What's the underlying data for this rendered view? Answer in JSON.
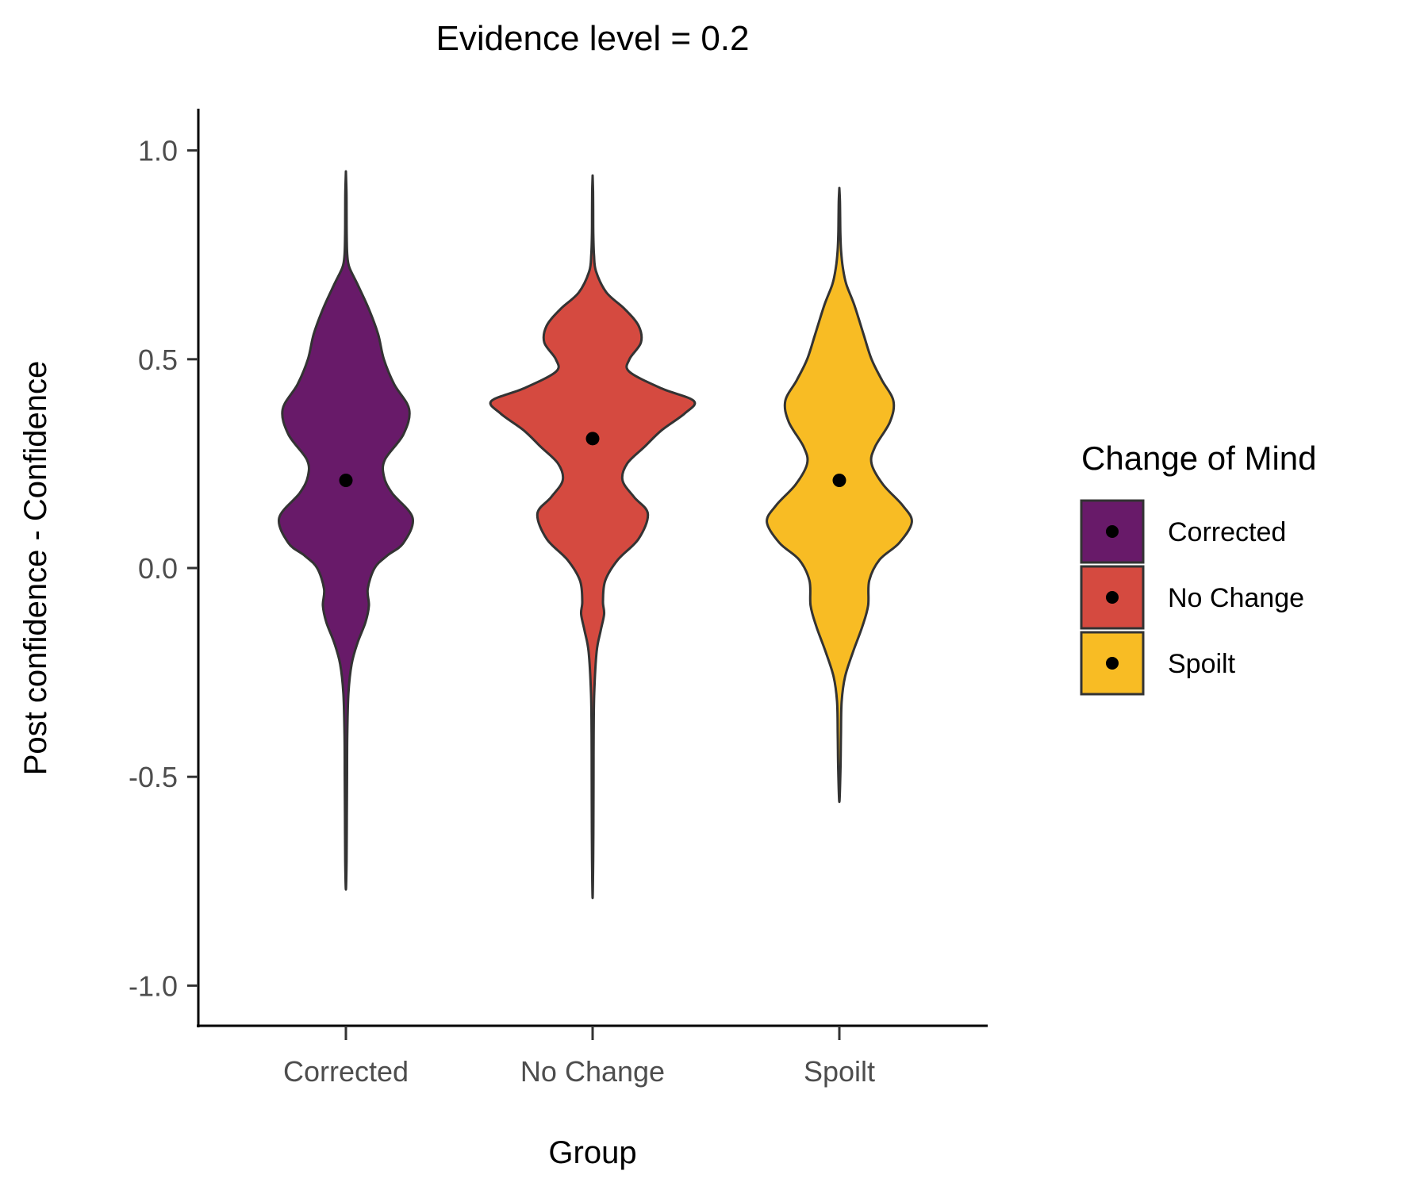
{
  "chart_data": {
    "type": "violin",
    "title": "Evidence level = 0.2",
    "xlabel": "Group",
    "ylabel": "Post confidence - Confidence",
    "categories": [
      "Corrected",
      "No Change",
      "Spoilt"
    ],
    "ylim": [
      -1.1,
      1.1
    ],
    "yticks": [
      1.0,
      0.5,
      0.0,
      -0.5,
      -1.0
    ],
    "ytick_labels": [
      "1.0",
      "0.5",
      "0.0",
      "-0.5",
      "-1.0"
    ],
    "grid": false,
    "legend": {
      "title": "Change of Mind",
      "position": "right",
      "entries": [
        "Corrected",
        "No Change",
        "Spoilt"
      ]
    },
    "colors": [
      "#681a69",
      "#d54a40",
      "#f8bc24"
    ],
    "outline_color": "#333333",
    "point_color": "#000000",
    "series": [
      {
        "name": "Corrected",
        "mean": 0.21,
        "range": [
          -0.77,
          0.95
        ],
        "density": [
          [
            0.95,
            0.0
          ],
          [
            0.9,
            0.005
          ],
          [
            0.85,
            0.006
          ],
          [
            0.8,
            0.007
          ],
          [
            0.75,
            0.012
          ],
          [
            0.72,
            0.03
          ],
          [
            0.68,
            0.1
          ],
          [
            0.62,
            0.2
          ],
          [
            0.56,
            0.28
          ],
          [
            0.5,
            0.33
          ],
          [
            0.44,
            0.42
          ],
          [
            0.38,
            0.55
          ],
          [
            0.32,
            0.5
          ],
          [
            0.26,
            0.34
          ],
          [
            0.22,
            0.33
          ],
          [
            0.18,
            0.4
          ],
          [
            0.12,
            0.58
          ],
          [
            0.06,
            0.5
          ],
          [
            0.03,
            0.36
          ],
          [
            0.0,
            0.25
          ],
          [
            -0.05,
            0.19
          ],
          [
            -0.09,
            0.2
          ],
          [
            -0.13,
            0.17
          ],
          [
            -0.18,
            0.1
          ],
          [
            -0.23,
            0.05
          ],
          [
            -0.3,
            0.022
          ],
          [
            -0.4,
            0.012
          ],
          [
            -0.5,
            0.01
          ],
          [
            -0.6,
            0.008
          ],
          [
            -0.7,
            0.006
          ],
          [
            -0.77,
            0.0
          ]
        ]
      },
      {
        "name": "No Change",
        "mean": 0.31,
        "range": [
          -0.79,
          0.94
        ],
        "density": [
          [
            0.94,
            0.0
          ],
          [
            0.9,
            0.004
          ],
          [
            0.85,
            0.005
          ],
          [
            0.8,
            0.006
          ],
          [
            0.75,
            0.012
          ],
          [
            0.71,
            0.03
          ],
          [
            0.66,
            0.12
          ],
          [
            0.62,
            0.28
          ],
          [
            0.58,
            0.4
          ],
          [
            0.54,
            0.42
          ],
          [
            0.5,
            0.32
          ],
          [
            0.47,
            0.32
          ],
          [
            0.43,
            0.6
          ],
          [
            0.4,
            0.88
          ],
          [
            0.37,
            0.8
          ],
          [
            0.33,
            0.6
          ],
          [
            0.29,
            0.45
          ],
          [
            0.25,
            0.3
          ],
          [
            0.21,
            0.26
          ],
          [
            0.17,
            0.36
          ],
          [
            0.13,
            0.48
          ],
          [
            0.07,
            0.4
          ],
          [
            0.02,
            0.22
          ],
          [
            -0.03,
            0.11
          ],
          [
            -0.08,
            0.09
          ],
          [
            -0.11,
            0.1
          ],
          [
            -0.15,
            0.07
          ],
          [
            -0.2,
            0.035
          ],
          [
            -0.3,
            0.014
          ],
          [
            -0.4,
            0.009
          ],
          [
            -0.5,
            0.008
          ],
          [
            -0.6,
            0.007
          ],
          [
            -0.7,
            0.005
          ],
          [
            -0.79,
            0.0
          ]
        ]
      },
      {
        "name": "Spoilt",
        "mean": 0.21,
        "range": [
          -0.56,
          0.91
        ],
        "density": [
          [
            0.91,
            0.0
          ],
          [
            0.88,
            0.005
          ],
          [
            0.84,
            0.007
          ],
          [
            0.8,
            0.009
          ],
          [
            0.76,
            0.015
          ],
          [
            0.72,
            0.03
          ],
          [
            0.68,
            0.06
          ],
          [
            0.63,
            0.13
          ],
          [
            0.56,
            0.21
          ],
          [
            0.5,
            0.28
          ],
          [
            0.45,
            0.37
          ],
          [
            0.4,
            0.47
          ],
          [
            0.35,
            0.44
          ],
          [
            0.29,
            0.31
          ],
          [
            0.25,
            0.28
          ],
          [
            0.2,
            0.38
          ],
          [
            0.15,
            0.55
          ],
          [
            0.11,
            0.63
          ],
          [
            0.06,
            0.52
          ],
          [
            0.02,
            0.35
          ],
          [
            -0.03,
            0.26
          ],
          [
            -0.09,
            0.25
          ],
          [
            -0.14,
            0.2
          ],
          [
            -0.2,
            0.12
          ],
          [
            -0.26,
            0.05
          ],
          [
            -0.32,
            0.02
          ],
          [
            -0.4,
            0.014
          ],
          [
            -0.48,
            0.01
          ],
          [
            -0.56,
            0.0
          ]
        ]
      }
    ]
  }
}
